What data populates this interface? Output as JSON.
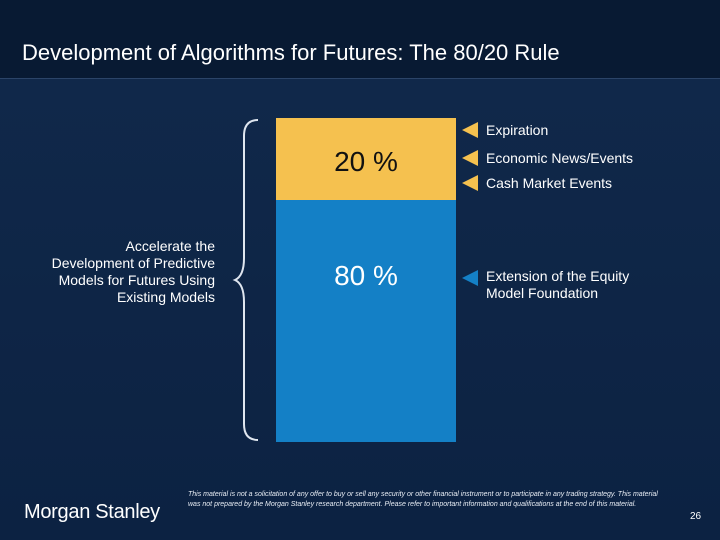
{
  "slide": {
    "title": "Development of Algorithms for Futures: The 80/20 Rule",
    "left_label": "Accelerate the Development of Predictive Models for Futures Using Existing Models",
    "bar": {
      "top_label": "20 %",
      "top_share": 20,
      "top_color": "#f5c14f",
      "bottom_label": "80 %",
      "bottom_share": 80,
      "bottom_color": "#1480c6"
    },
    "annotations": [
      {
        "text": "Expiration",
        "marker_color": "#f5c14f"
      },
      {
        "text": "Economic News/Events",
        "marker_color": "#f5c14f"
      },
      {
        "text": "Cash Market Events",
        "marker_color": "#f5c14f"
      },
      {
        "text": "Extension of the Equity Model Foundation",
        "marker_color": "#1480c6"
      }
    ],
    "annotation_line_1": "Extension of the Equity",
    "annotation_line_2": "Model Foundation"
  },
  "footer": {
    "logo_text": "Morgan Stanley",
    "disclaimer": "This material is not a solicitation of any offer to buy or sell any security or other financial instrument or to participate in any trading strategy. This material was not prepared by the Morgan Stanley research department. Please refer to important information and qualifications at the end of this material.",
    "page_number": "26"
  },
  "colors": {
    "background": "#0d2545",
    "header": "#081a33",
    "accent_yellow": "#f5c14f",
    "accent_blue": "#1480c6"
  }
}
